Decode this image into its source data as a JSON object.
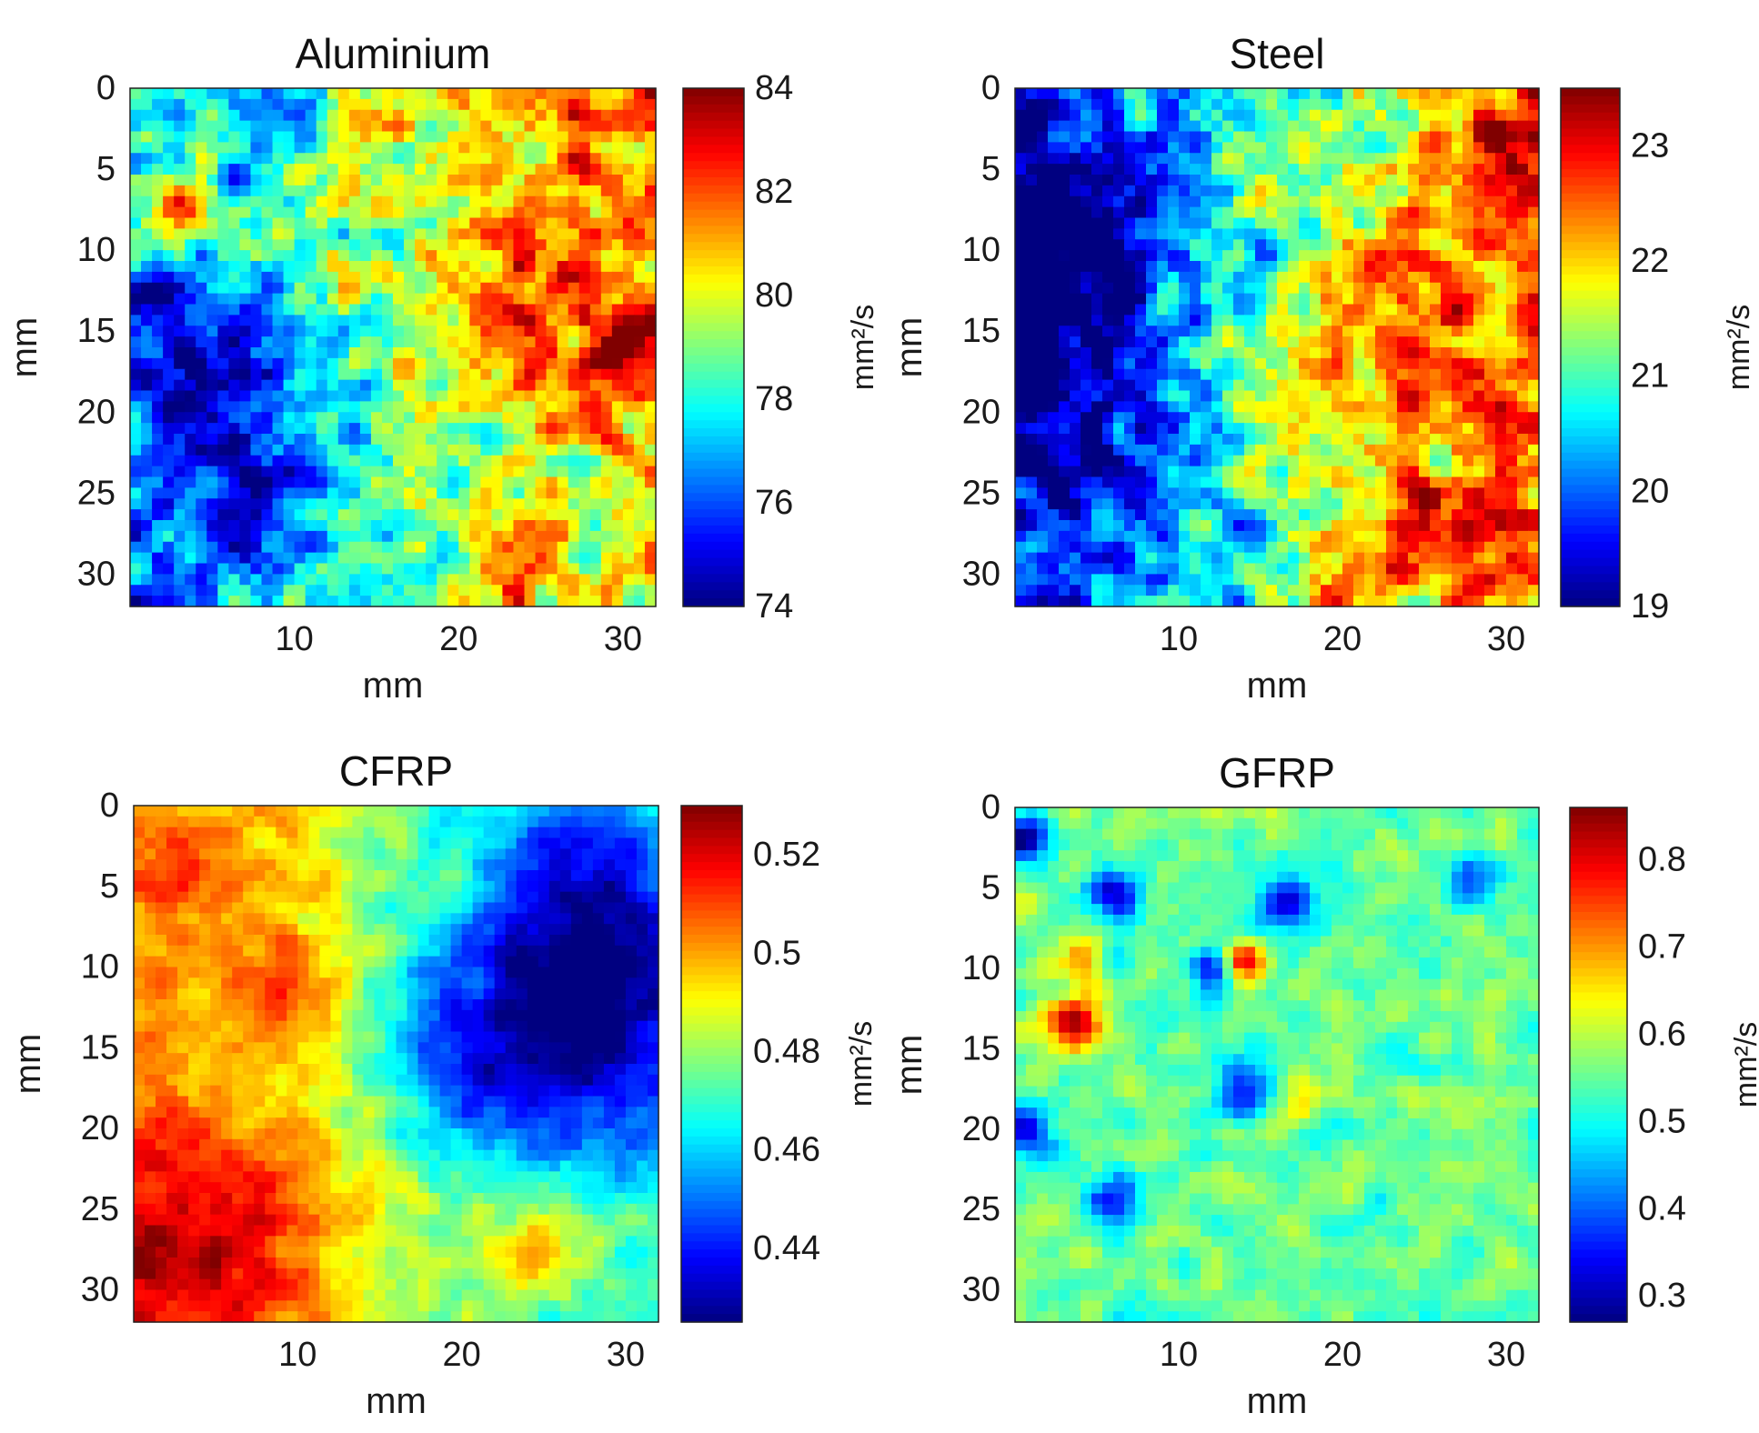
{
  "chart_data": [
    {
      "type": "heatmap",
      "title": "Aluminium",
      "xlabel": "mm",
      "ylabel": "mm",
      "x_ticks": [
        "10",
        "20",
        "30"
      ],
      "y_ticks": [
        "0",
        "5",
        "10",
        "15",
        "20",
        "25",
        "30"
      ],
      "xlim": [
        0,
        32
      ],
      "ylim": [
        0,
        32
      ],
      "colorbar": {
        "label": "mm²/s",
        "range": [
          74,
          84
        ],
        "ticks": [
          "74",
          "76",
          "78",
          "80",
          "82",
          "84"
        ]
      },
      "field": {
        "base": 79.0,
        "gradient": [
          2.0,
          -1.0
        ],
        "noise": 2.0,
        "spots": [
          {
            "x": 24,
            "y": 14,
            "r": 4,
            "a": 2.5
          },
          {
            "x": 23,
            "y": 30,
            "r": 2.5,
            "a": 3.0
          },
          {
            "x": 3,
            "y": 7,
            "r": 1.5,
            "a": 3.0
          },
          {
            "x": 31,
            "y": 16,
            "r": 1.5,
            "a": 3.5
          },
          {
            "x": 5,
            "y": 17,
            "r": 3,
            "a": -2.5
          },
          {
            "x": 7,
            "y": 24,
            "r": 3,
            "a": -2.5
          },
          {
            "x": 9,
            "y": 2,
            "r": 2,
            "a": -3.0
          },
          {
            "x": 2,
            "y": 13,
            "r": 2,
            "a": -2.5
          }
        ]
      }
    },
    {
      "type": "heatmap",
      "title": "Steel",
      "xlabel": "mm",
      "ylabel": "mm",
      "x_ticks": [
        "10",
        "20",
        "30"
      ],
      "y_ticks": [
        "0",
        "5",
        "10",
        "15",
        "20",
        "25",
        "30"
      ],
      "xlim": [
        0,
        32
      ],
      "ylim": [
        0,
        32
      ],
      "colorbar": {
        "label": "mm²/s",
        "range": [
          19,
          23.5
        ],
        "ticks": [
          "19",
          "20",
          "21",
          "22",
          "23"
        ]
      },
      "field": {
        "base": 21.0,
        "gradient": [
          1.4,
          0.0
        ],
        "noise": 0.9,
        "spots": [
          {
            "x": 3,
            "y": 8,
            "r": 5,
            "a": -1.2
          },
          {
            "x": 3,
            "y": 20,
            "r": 5,
            "a": -0.9
          },
          {
            "x": 22,
            "y": 17,
            "r": 5,
            "a": 0.9
          },
          {
            "x": 27,
            "y": 28,
            "r": 3,
            "a": 1.0
          },
          {
            "x": 30,
            "y": 4,
            "r": 3,
            "a": 0.9
          },
          {
            "x": 20,
            "y": 31,
            "r": 2,
            "a": 1.2
          }
        ]
      }
    },
    {
      "type": "heatmap",
      "title": "CFRP",
      "xlabel": "mm",
      "ylabel": "mm",
      "x_ticks": [
        "10",
        "20",
        "30"
      ],
      "y_ticks": [
        "0",
        "5",
        "10",
        "15",
        "20",
        "25",
        "30"
      ],
      "xlim": [
        0,
        32
      ],
      "ylim": [
        0,
        32
      ],
      "colorbar": {
        "label": "mm²/s",
        "range": [
          0.425,
          0.53
        ],
        "ticks": [
          "0.44",
          "0.46",
          "0.48",
          "0.5",
          "0.52"
        ]
      },
      "field": {
        "base": 0.47,
        "gradient": [
          0.0,
          0.0
        ],
        "noise": 0.009,
        "spots": [
          {
            "x": 3,
            "y": 27,
            "r": 8,
            "a": 0.055
          },
          {
            "x": 3,
            "y": 4,
            "r": 7,
            "a": 0.036
          },
          {
            "x": 28,
            "y": 13,
            "r": 6,
            "a": -0.04
          },
          {
            "x": 28,
            "y": 5,
            "r": 4,
            "a": -0.025
          },
          {
            "x": 21,
            "y": 15,
            "r": 4,
            "a": -0.02
          },
          {
            "x": 24,
            "y": 27,
            "r": 2.5,
            "a": 0.025
          },
          {
            "x": 10,
            "y": 12,
            "r": 2.5,
            "a": 0.02
          }
        ]
      }
    },
    {
      "type": "heatmap",
      "title": "GFRP",
      "xlabel": "mm",
      "ylabel": "mm",
      "x_ticks": [
        "10",
        "20",
        "30"
      ],
      "y_ticks": [
        "0",
        "5",
        "10",
        "15",
        "20",
        "25",
        "30"
      ],
      "xlim": [
        0,
        32
      ],
      "ylim": [
        0,
        32
      ],
      "colorbar": {
        "label": "mm²/s",
        "range": [
          0.27,
          0.86
        ],
        "ticks": [
          "0.3",
          "0.4",
          "0.5",
          "0.6",
          "0.7",
          "0.8"
        ]
      },
      "field": {
        "base": 0.55,
        "gradient": [
          0.0,
          0.0
        ],
        "noise": 0.05,
        "spots": [
          {
            "x": 3.5,
            "y": 13.5,
            "r": 1.2,
            "a": 0.3
          },
          {
            "x": 14,
            "y": 9.5,
            "r": 0.8,
            "a": 0.3
          },
          {
            "x": 4,
            "y": 9.5,
            "r": 1.0,
            "a": 0.15
          },
          {
            "x": 17.5,
            "y": 18,
            "r": 1.0,
            "a": 0.15
          },
          {
            "x": 0.5,
            "y": 2,
            "r": 1.0,
            "a": -0.3
          },
          {
            "x": 16.5,
            "y": 6,
            "r": 1.2,
            "a": -0.25
          },
          {
            "x": 6,
            "y": 5.5,
            "r": 1.2,
            "a": -0.2
          },
          {
            "x": 0.5,
            "y": 20,
            "r": 1.2,
            "a": -0.25
          },
          {
            "x": 14,
            "y": 17.5,
            "r": 1.2,
            "a": -0.2
          },
          {
            "x": 28,
            "y": 4.5,
            "r": 1.2,
            "a": -0.2
          },
          {
            "x": 6,
            "y": 24.5,
            "r": 1.2,
            "a": -0.2
          },
          {
            "x": 12,
            "y": 10,
            "r": 1.0,
            "a": -0.18
          }
        ]
      }
    }
  ]
}
